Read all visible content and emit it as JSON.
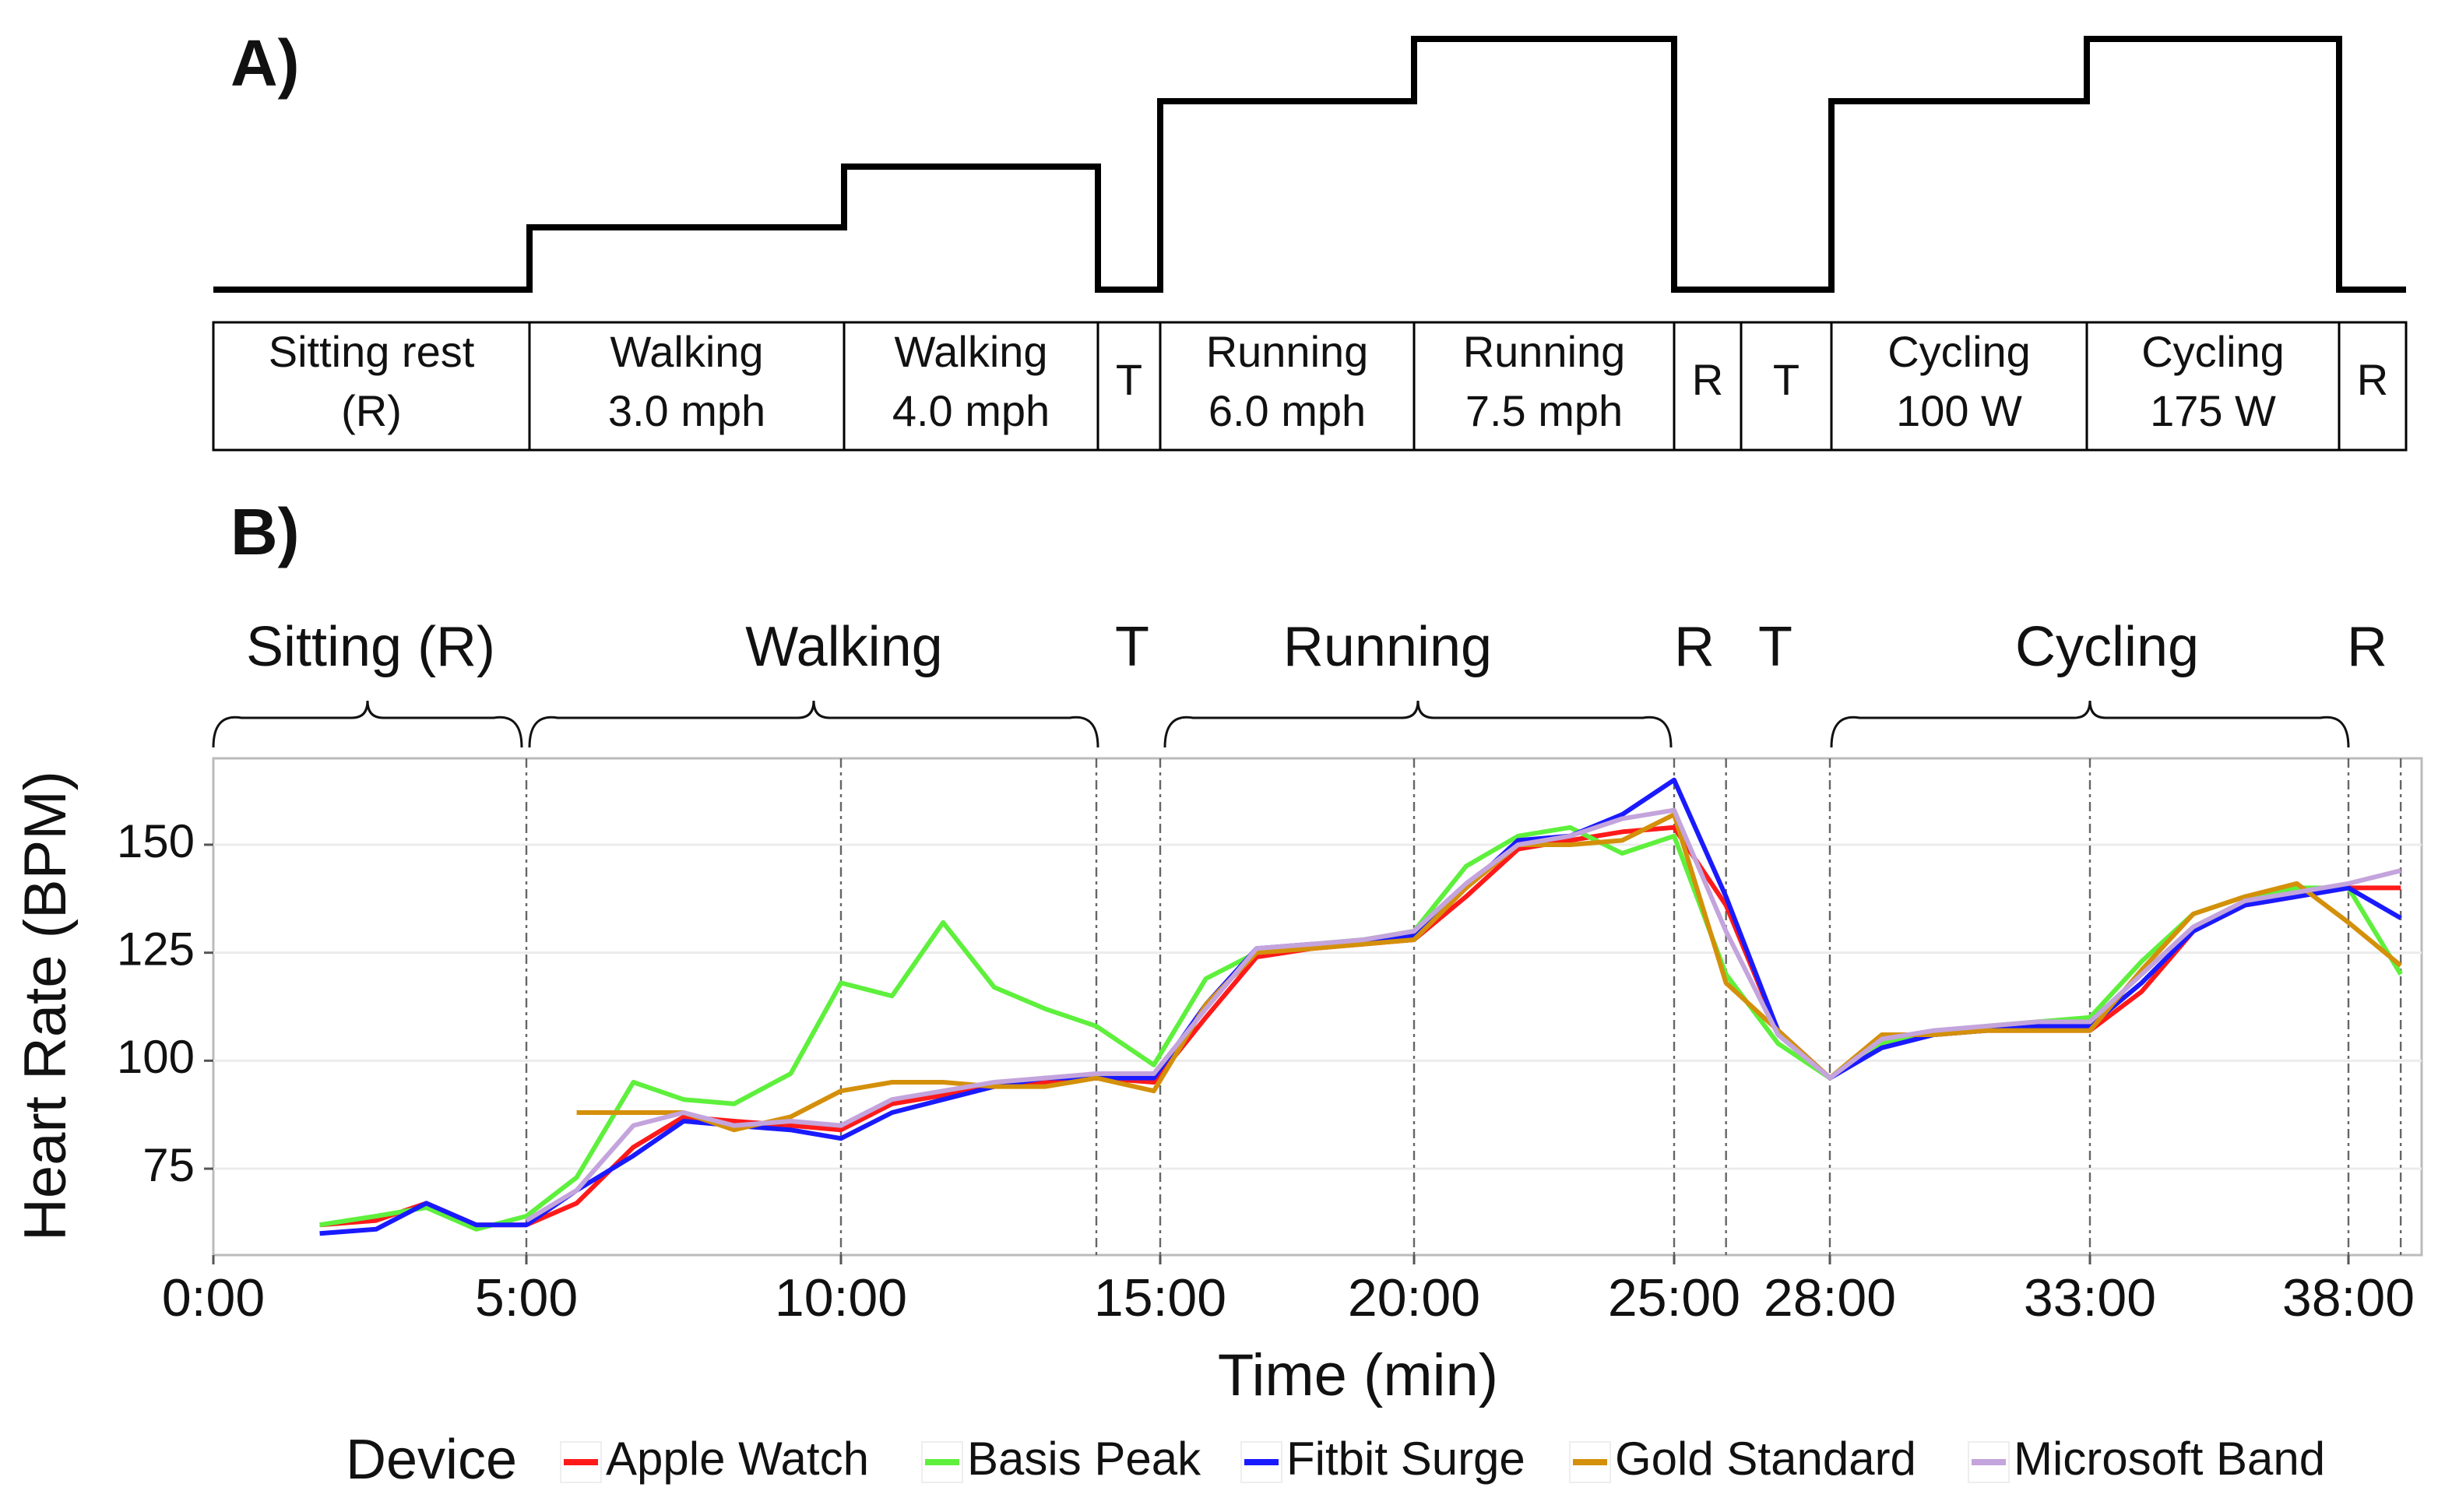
{
  "panel_a": {
    "label": "A)",
    "segments": [
      [
        "Sitting rest",
        "(R)"
      ],
      [
        "Walking",
        "3.0 mph"
      ],
      [
        "Walking",
        "4.0 mph"
      ],
      [
        "T"
      ],
      [
        "Running",
        "6.0 mph"
      ],
      [
        "Running",
        "7.5 mph"
      ],
      [
        "R"
      ],
      [
        "T"
      ],
      [
        "Cycling",
        "100 W"
      ],
      [
        "Cycling",
        "175 W"
      ],
      [
        "R"
      ]
    ]
  },
  "panel_b": {
    "label": "B)",
    "phases": [
      "Sitting (R)",
      "Walking",
      "T",
      "Running",
      "R",
      "T",
      "Cycling",
      "R"
    ]
  },
  "chart_data": {
    "type": "line",
    "xlabel": "Time (min)",
    "ylabel": "Heart Rate (BPM)",
    "legend_title": "Device",
    "legend": "bottom",
    "grid": true,
    "xlim": [
      0,
      39.4
    ],
    "ylim": [
      55,
      170
    ],
    "xticks": [
      {
        "value": 0,
        "label": "0:00"
      },
      {
        "value": 5,
        "label": "5:00"
      },
      {
        "value": 10,
        "label": "10:00"
      },
      {
        "value": 15,
        "label": "15:00"
      },
      {
        "value": 20,
        "label": "20:00"
      },
      {
        "value": 25,
        "label": "25:00"
      },
      {
        "value": 28,
        "label": "28:00"
      },
      {
        "value": 33,
        "label": "33:00"
      },
      {
        "value": 38,
        "label": "38:00"
      }
    ],
    "yticks": [
      75,
      100,
      125,
      150
    ],
    "vlines": [
      5,
      10,
      14,
      15,
      20,
      25,
      26,
      28,
      33,
      38,
      39
    ],
    "x": [
      1.7,
      2.6,
      3.4,
      4.2,
      5,
      5.8,
      6.7,
      7.5,
      8.3,
      9.2,
      10,
      10.8,
      11.6,
      12.4,
      13.2,
      14,
      14.9,
      15.9,
      16.9,
      18,
      19,
      20,
      21,
      22,
      23,
      24,
      25,
      26,
      27,
      28,
      29,
      30,
      31,
      32,
      33,
      34,
      35,
      36,
      37,
      38,
      39
    ],
    "series": [
      {
        "name": "Apple Watch",
        "color": "#ff1a1a",
        "values": [
          62,
          63,
          67,
          62,
          62,
          67,
          80,
          87,
          86,
          85,
          84,
          90,
          92,
          94,
          95,
          96,
          95,
          110,
          124,
          126,
          127,
          128,
          138,
          149,
          151,
          153,
          154,
          136,
          107,
          96,
          104,
          106,
          107,
          107,
          107,
          116,
          130,
          136,
          138,
          140,
          140
        ]
      },
      {
        "name": "Basis Peak",
        "color": "#5ef03c",
        "values": [
          62,
          64,
          66,
          61,
          64,
          73,
          95,
          91,
          90,
          97,
          118,
          115,
          132,
          117,
          112,
          108,
          99,
          119,
          125,
          127,
          128,
          130,
          145,
          152,
          154,
          148,
          152,
          120,
          104,
          96,
          104,
          106,
          108,
          109,
          110,
          123,
          134,
          138,
          140,
          140,
          120
        ]
      },
      {
        "name": "Fitbit Surge",
        "color": "#1a1aff",
        "values": [
          60,
          61,
          67,
          62,
          62,
          70,
          78,
          86,
          85,
          84,
          82,
          88,
          91,
          94,
          96,
          96,
          96,
          113,
          126,
          127,
          127,
          129,
          140,
          151,
          152,
          157,
          165,
          138,
          107,
          96,
          103,
          106,
          107,
          108,
          108,
          118,
          130,
          136,
          138,
          140,
          133
        ]
      },
      {
        "name": "Gold Standard",
        "color": "#d4900a",
        "values": [
          null,
          null,
          null,
          null,
          null,
          88,
          88,
          88,
          84,
          87,
          93,
          95,
          95,
          94,
          94,
          96,
          93,
          113,
          125,
          126,
          127,
          128,
          140,
          150,
          150,
          151,
          157,
          118,
          107,
          96,
          106,
          106,
          107,
          107,
          107,
          121,
          134,
          138,
          141,
          132,
          122
        ]
      },
      {
        "name": "Microsoft Band",
        "color": "#c4a4dc",
        "values": [
          null,
          null,
          null,
          null,
          63,
          70,
          85,
          88,
          85,
          86,
          85,
          91,
          93,
          95,
          96,
          97,
          97,
          112,
          126,
          127,
          128,
          130,
          141,
          150,
          152,
          156,
          158,
          130,
          106,
          96,
          105,
          107,
          108,
          109,
          109,
          120,
          131,
          137,
          139,
          141,
          144
        ]
      }
    ]
  }
}
